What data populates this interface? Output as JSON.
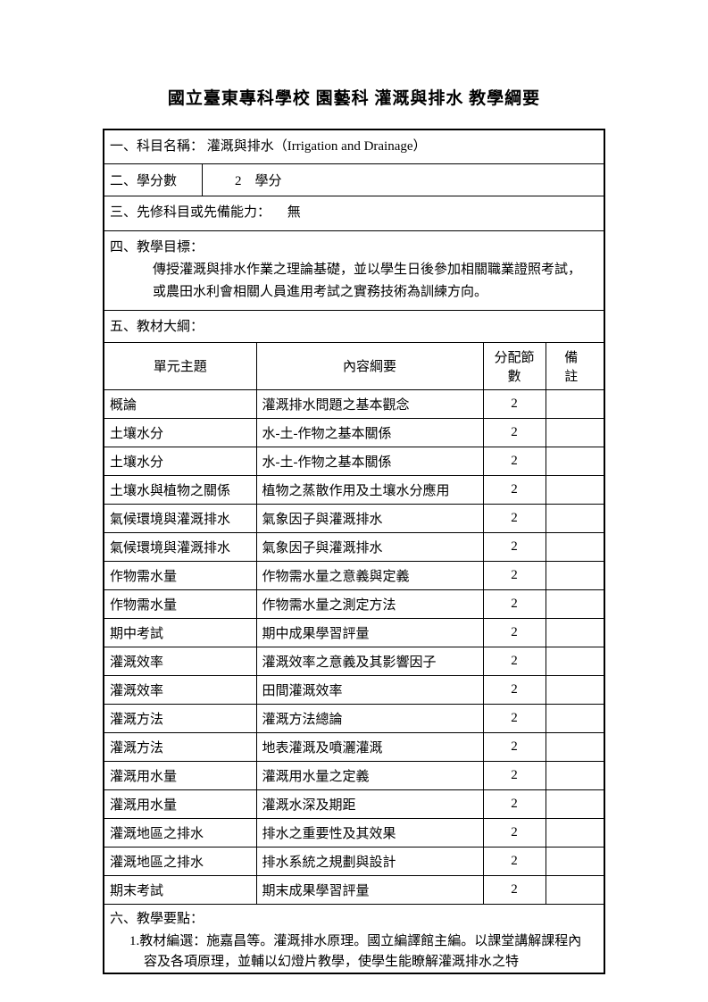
{
  "title": "國立臺東專科學校 園藝科 灌溉與排水 教學綱要",
  "s1_label": "一、科目名稱：",
  "s1_value": "灌溉與排水（Irrigation and Drainage）",
  "s2_label": "二、學分數",
  "s2_value": "2　學分",
  "s3_label": "三、先修科目或先備能力：",
  "s3_value": "無",
  "s4_label": "四、教學目標：",
  "s4_body1": "傳授灌溉與排水作業之理論基礎，並以學生日後參加相關職業證照考試，",
  "s4_body2": "或農田水利會相關人員進用考試之實務技術為訓練方向。",
  "s5_label": "五、教材大綱：",
  "headers": {
    "unit": "單元主題",
    "content": "內容綱要",
    "num": "分配節數",
    "note": "備註"
  },
  "rows": [
    {
      "unit": "概論",
      "content": "灌溉排水問題之基本觀念",
      "num": "2",
      "note": ""
    },
    {
      "unit": "土壤水分",
      "content": "水-土-作物之基本關係",
      "num": "2",
      "note": ""
    },
    {
      "unit": "土壤水分",
      "content": "水-土-作物之基本關係",
      "num": "2",
      "note": ""
    },
    {
      "unit": "土壤水與植物之關係",
      "content": "植物之蒸散作用及土壤水分應用",
      "num": "2",
      "note": ""
    },
    {
      "unit": "氣候環境與灌溉排水",
      "content": "氣象因子與灌溉排水",
      "num": "2",
      "note": ""
    },
    {
      "unit": "氣候環境與灌溉排水",
      "content": "氣象因子與灌溉排水",
      "num": "2",
      "note": ""
    },
    {
      "unit": "作物需水量",
      "content": "作物需水量之意義與定義",
      "num": "2",
      "note": ""
    },
    {
      "unit": "作物需水量",
      "content": "作物需水量之測定方法",
      "num": "2",
      "note": ""
    },
    {
      "unit": "期中考試",
      "content": "期中成果學習評量",
      "num": "2",
      "note": ""
    },
    {
      "unit": "灌溉效率",
      "content": "灌溉效率之意義及其影響因子",
      "num": "2",
      "note": ""
    },
    {
      "unit": "灌溉效率",
      "content": "田間灌溉效率",
      "num": "2",
      "note": ""
    },
    {
      "unit": "灌溉方法",
      "content": "灌溉方法總論",
      "num": "2",
      "note": ""
    },
    {
      "unit": "灌溉方法",
      "content": "地表灌溉及噴灑灌溉",
      "num": "2",
      "note": ""
    },
    {
      "unit": "灌溉用水量",
      "content": "灌溉用水量之定義",
      "num": "2",
      "note": ""
    },
    {
      "unit": "灌溉用水量",
      "content": "灌溉水深及期距",
      "num": "2",
      "note": ""
    },
    {
      "unit": "灌溉地區之排水",
      "content": "排水之重要性及其效果",
      "num": "2",
      "note": ""
    },
    {
      "unit": "灌溉地區之排水",
      "content": "排水系統之規劃與設計",
      "num": "2",
      "note": ""
    },
    {
      "unit": "期末考試",
      "content": "期末成果學習評量",
      "num": "2",
      "note": ""
    }
  ],
  "s6_label": "六、教學要點：",
  "s6_body1": "1.教材編選：施嘉昌等。灌溉排水原理。國立編譯館主編。以課堂講解課程內",
  "s6_body2": "容及各項原理，並輔以幻燈片教學，使學生能瞭解灌溉排水之特"
}
